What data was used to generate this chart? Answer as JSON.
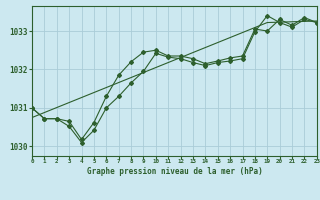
{
  "title": "Graphe pression niveau de la mer (hPa)",
  "background_color": "#cce8f0",
  "grid_color": "#aaccd8",
  "line_color": "#2d5f2d",
  "xlim": [
    0,
    23
  ],
  "ylim": [
    1029.75,
    1033.65
  ],
  "yticks": [
    1030,
    1031,
    1032,
    1033
  ],
  "xticks": [
    0,
    1,
    2,
    3,
    4,
    5,
    6,
    7,
    8,
    9,
    10,
    11,
    12,
    13,
    14,
    15,
    16,
    17,
    18,
    19,
    20,
    21,
    22,
    23
  ],
  "series": {
    "line_straight": [
      1030.75,
      1030.88,
      1031.01,
      1031.14,
      1031.27,
      1031.4,
      1031.53,
      1031.66,
      1031.79,
      1031.92,
      1032.05,
      1032.18,
      1032.31,
      1032.44,
      1032.57,
      1032.7,
      1032.83,
      1032.96,
      1033.09,
      1033.22,
      1033.23,
      1033.24,
      1033.25,
      1033.26
    ],
    "line_upper": [
      1031.0,
      1030.72,
      1030.72,
      1030.65,
      1030.18,
      1030.62,
      1031.3,
      1031.85,
      1032.2,
      1032.45,
      1032.5,
      1032.35,
      1032.35,
      1032.28,
      1032.15,
      1032.22,
      1032.3,
      1032.35,
      1033.05,
      1033.0,
      1033.3,
      1033.15,
      1033.35,
      1033.22
    ],
    "line_lower": [
      1031.0,
      1030.72,
      1030.72,
      1030.52,
      1030.1,
      1030.42,
      1031.0,
      1031.3,
      1031.65,
      1031.95,
      1032.42,
      1032.32,
      1032.28,
      1032.18,
      1032.1,
      1032.18,
      1032.22,
      1032.28,
      1032.98,
      1033.4,
      1033.22,
      1033.1,
      1033.3,
      1033.22
    ]
  }
}
